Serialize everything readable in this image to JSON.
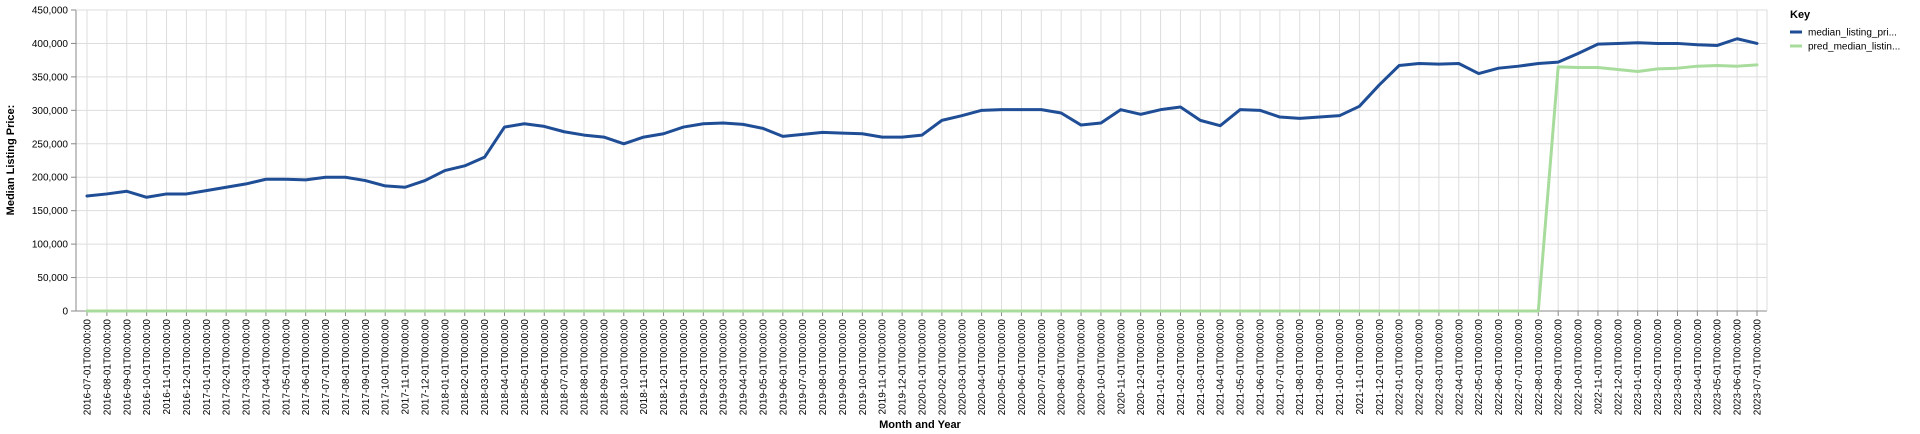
{
  "chart_data": {
    "type": "line",
    "xlabel": "Month and Year",
    "ylabel": "Median Listing Price:",
    "ylim": [
      0,
      450000
    ],
    "yticks": [
      0,
      50000,
      100000,
      150000,
      200000,
      250000,
      300000,
      350000,
      400000,
      450000
    ],
    "ytick_labels": [
      "0",
      "50,000",
      "100,000",
      "150,000",
      "200,000",
      "250,000",
      "300,000",
      "350,000",
      "400,000",
      "450,000"
    ],
    "grid": true,
    "legend": {
      "title": "Key",
      "placement": "top-right"
    },
    "x": [
      "2016-07-01T00:00:00",
      "2016-08-01T00:00:00",
      "2016-09-01T00:00:00",
      "2016-10-01T00:00:00",
      "2016-11-01T00:00:00",
      "2016-12-01T00:00:00",
      "2017-01-01T00:00:00",
      "2017-02-01T00:00:00",
      "2017-03-01T00:00:00",
      "2017-04-01T00:00:00",
      "2017-05-01T00:00:00",
      "2017-06-01T00:00:00",
      "2017-07-01T00:00:00",
      "2017-08-01T00:00:00",
      "2017-09-01T00:00:00",
      "2017-10-01T00:00:00",
      "2017-11-01T00:00:00",
      "2017-12-01T00:00:00",
      "2018-01-01T00:00:00",
      "2018-02-01T00:00:00",
      "2018-03-01T00:00:00",
      "2018-04-01T00:00:00",
      "2018-05-01T00:00:00",
      "2018-06-01T00:00:00",
      "2018-07-01T00:00:00",
      "2018-08-01T00:00:00",
      "2018-09-01T00:00:00",
      "2018-10-01T00:00:00",
      "2018-11-01T00:00:00",
      "2018-12-01T00:00:00",
      "2019-01-01T00:00:00",
      "2019-02-01T00:00:00",
      "2019-03-01T00:00:00",
      "2019-04-01T00:00:00",
      "2019-05-01T00:00:00",
      "2019-06-01T00:00:00",
      "2019-07-01T00:00:00",
      "2019-08-01T00:00:00",
      "2019-09-01T00:00:00",
      "2019-10-01T00:00:00",
      "2019-11-01T00:00:00",
      "2019-12-01T00:00:00",
      "2020-01-01T00:00:00",
      "2020-02-01T00:00:00",
      "2020-03-01T00:00:00",
      "2020-04-01T00:00:00",
      "2020-05-01T00:00:00",
      "2020-06-01T00:00:00",
      "2020-07-01T00:00:00",
      "2020-08-01T00:00:00",
      "2020-09-01T00:00:00",
      "2020-10-01T00:00:00",
      "2020-11-01T00:00:00",
      "2020-12-01T00:00:00",
      "2021-01-01T00:00:00",
      "2021-02-01T00:00:00",
      "2021-03-01T00:00:00",
      "2021-04-01T00:00:00",
      "2021-05-01T00:00:00",
      "2021-06-01T00:00:00",
      "2021-07-01T00:00:00",
      "2021-08-01T00:00:00",
      "2021-09-01T00:00:00",
      "2021-10-01T00:00:00",
      "2021-11-01T00:00:00",
      "2021-12-01T00:00:00",
      "2022-01-01T00:00:00",
      "2022-02-01T00:00:00",
      "2022-03-01T00:00:00",
      "2022-04-01T00:00:00",
      "2022-05-01T00:00:00",
      "2022-06-01T00:00:00",
      "2022-07-01T00:00:00",
      "2022-08-01T00:00:00",
      "2022-09-01T00:00:00",
      "2022-10-01T00:00:00",
      "2022-11-01T00:00:00",
      "2022-12-01T00:00:00",
      "2023-01-01T00:00:00",
      "2023-02-01T00:00:00",
      "2023-03-01T00:00:00",
      "2023-04-01T00:00:00",
      "2023-05-01T00:00:00",
      "2023-06-01T00:00:00",
      "2023-07-01T00:00:00"
    ],
    "series": [
      {
        "name": "median_listing_pri...",
        "color": "#1f4e96",
        "values": [
          172000,
          175000,
          179000,
          170000,
          175000,
          175000,
          180000,
          185000,
          190000,
          197000,
          197000,
          196000,
          200000,
          200000,
          195000,
          187000,
          185000,
          195000,
          210000,
          217000,
          230000,
          275000,
          280000,
          276000,
          268000,
          263000,
          260000,
          250000,
          260000,
          265000,
          275000,
          280000,
          281000,
          279000,
          273000,
          261000,
          264000,
          267000,
          266000,
          265000,
          260000,
          260000,
          263000,
          285000,
          292000,
          300000,
          301000,
          301000,
          301000,
          296000,
          278000,
          281000,
          301000,
          294000,
          301000,
          305000,
          285000,
          277000,
          301000,
          300000,
          290000,
          288000,
          290000,
          292000,
          306000,
          338000,
          367000,
          370000,
          369000,
          370000,
          355000,
          363000,
          366000,
          370000,
          372000,
          385000,
          399000,
          400000,
          401000,
          400000,
          400000,
          398000,
          397000,
          407000,
          400000
        ]
      },
      {
        "name": "pred_median_listin...",
        "color": "#a8dc9c",
        "values": [
          0,
          0,
          0,
          0,
          0,
          0,
          0,
          0,
          0,
          0,
          0,
          0,
          0,
          0,
          0,
          0,
          0,
          0,
          0,
          0,
          0,
          0,
          0,
          0,
          0,
          0,
          0,
          0,
          0,
          0,
          0,
          0,
          0,
          0,
          0,
          0,
          0,
          0,
          0,
          0,
          0,
          0,
          0,
          0,
          0,
          0,
          0,
          0,
          0,
          0,
          0,
          0,
          0,
          0,
          0,
          0,
          0,
          0,
          0,
          0,
          0,
          0,
          0,
          0,
          0,
          0,
          0,
          0,
          0,
          0,
          0,
          0,
          0,
          0,
          365000,
          364000,
          364000,
          361000,
          358000,
          362000,
          363000,
          366000,
          367000,
          366000,
          368000
        ]
      }
    ]
  }
}
